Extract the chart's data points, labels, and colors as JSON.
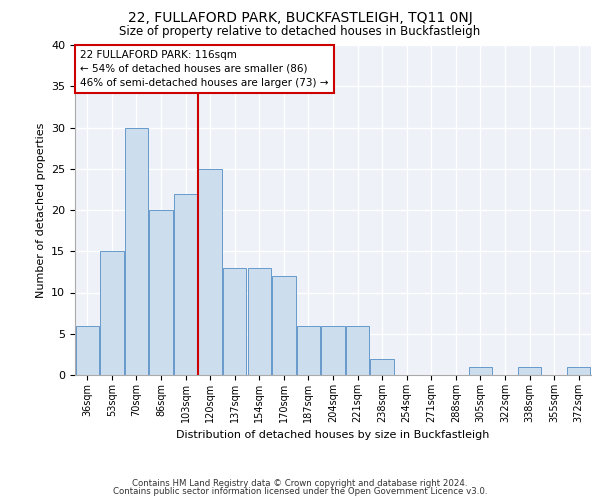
{
  "title1": "22, FULLAFORD PARK, BUCKFASTLEIGH, TQ11 0NJ",
  "title2": "Size of property relative to detached houses in Buckfastleigh",
  "xlabel": "Distribution of detached houses by size in Buckfastleigh",
  "ylabel": "Number of detached properties",
  "bar_labels": [
    "36sqm",
    "53sqm",
    "70sqm",
    "86sqm",
    "103sqm",
    "120sqm",
    "137sqm",
    "154sqm",
    "170sqm",
    "187sqm",
    "204sqm",
    "221sqm",
    "238sqm",
    "254sqm",
    "271sqm",
    "288sqm",
    "305sqm",
    "322sqm",
    "338sqm",
    "355sqm",
    "372sqm"
  ],
  "bar_values": [
    6,
    15,
    30,
    20,
    22,
    25,
    13,
    13,
    12,
    6,
    6,
    6,
    2,
    0,
    0,
    0,
    1,
    0,
    1,
    0,
    1
  ],
  "bar_color": "#ccdded",
  "bar_edge_color": "#6699cc",
  "vline_color": "#cc0000",
  "annotation_text": "22 FULLAFORD PARK: 116sqm\n← 54% of detached houses are smaller (86)\n46% of semi-detached houses are larger (73) →",
  "annotation_box_color": "#cc0000",
  "ylim": [
    0,
    40
  ],
  "yticks": [
    0,
    5,
    10,
    15,
    20,
    25,
    30,
    35,
    40
  ],
  "footer1": "Contains HM Land Registry data © Crown copyright and database right 2024.",
  "footer2": "Contains public sector information licensed under the Open Government Licence v3.0.",
  "plot_bg_color": "#eef2f8"
}
